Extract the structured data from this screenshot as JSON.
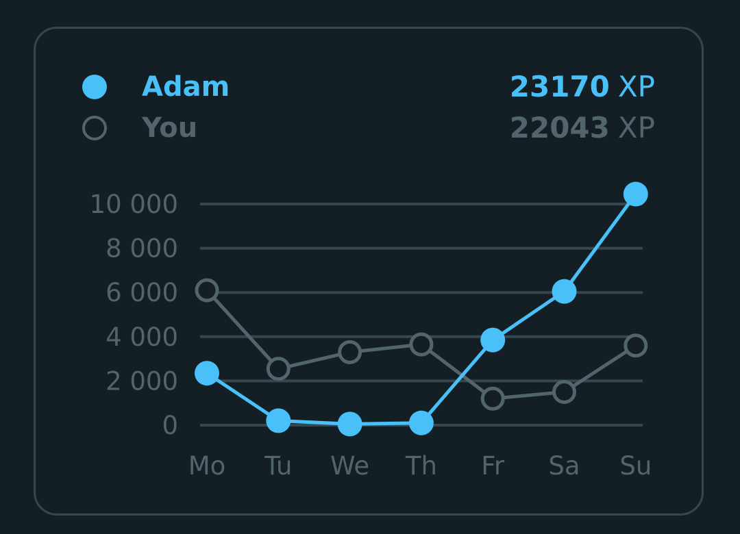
{
  "legend": [
    {
      "name": "Adam",
      "xp": "23170",
      "unit": "XP",
      "style": "filled",
      "color": "#49c0f8"
    },
    {
      "name": "You",
      "xp": "22043",
      "unit": "XP",
      "style": "hollow",
      "color": "#52656d"
    }
  ],
  "chart_data": {
    "type": "line",
    "categories": [
      "Mo",
      "Tu",
      "We",
      "Th",
      "Fr",
      "Sa",
      "Su"
    ],
    "yticks": [
      {
        "value": 0,
        "label": "0"
      },
      {
        "value": 2000,
        "label": "2 000"
      },
      {
        "value": 4000,
        "label": "4 000"
      },
      {
        "value": 6000,
        "label": "6 000"
      },
      {
        "value": 8000,
        "label": "8 000"
      },
      {
        "value": 10000,
        "label": "10 000"
      }
    ],
    "ylim": [
      0,
      10000
    ],
    "grid": true,
    "series": [
      {
        "name": "You",
        "values": [
          6100,
          2550,
          3300,
          3650,
          1200,
          1500,
          3600
        ],
        "color": "#52656d",
        "marker": "hollow"
      },
      {
        "name": "Adam",
        "values": [
          2350,
          200,
          50,
          100,
          3850,
          6050,
          10450
        ],
        "color": "#49c0f8",
        "marker": "filled"
      }
    ]
  }
}
